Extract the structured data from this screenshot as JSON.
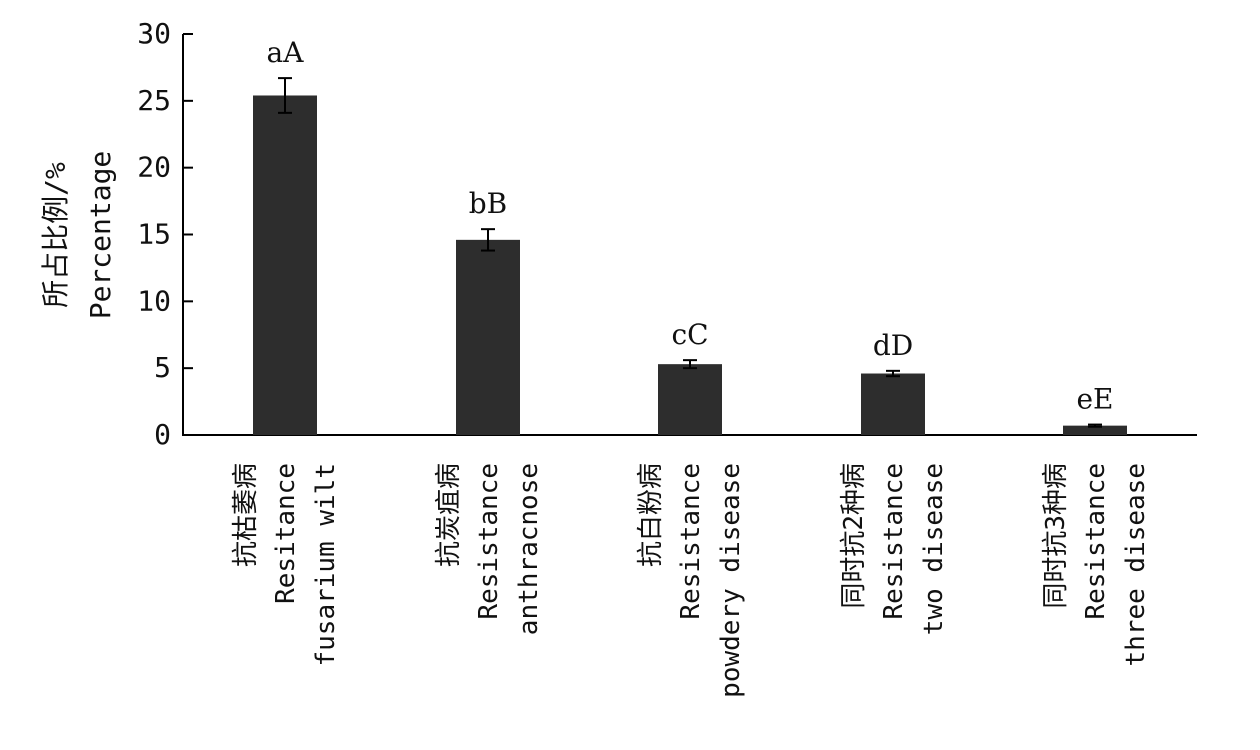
{
  "chart_data": {
    "type": "bar",
    "ylabel": [
      "所占比例/%",
      "Percentage"
    ],
    "ylim": [
      0,
      30
    ],
    "yticks": [
      0,
      5,
      10,
      15,
      20,
      25,
      30
    ],
    "categories": [
      [
        "抗枯萎病",
        "Resitance",
        "fusarium wilt"
      ],
      [
        "抗炭疽病",
        "Resistance",
        "anthracnose"
      ],
      [
        "抗白粉病",
        "Resistance",
        "powdery disease"
      ],
      [
        "同时抗2种病",
        "Resistance",
        "two disease"
      ],
      [
        "同时抗3种病",
        "Resistance",
        "three disease"
      ]
    ],
    "series": [
      {
        "values": [
          25.4,
          14.6,
          5.3,
          4.6,
          0.7
        ],
        "errors": [
          1.3,
          0.8,
          0.3,
          0.2,
          0.08
        ],
        "significance": [
          "aA",
          "bB",
          "cC",
          "dD",
          "eE"
        ],
        "color": "#2d2d2d"
      }
    ],
    "grid": false,
    "legend": "none"
  }
}
